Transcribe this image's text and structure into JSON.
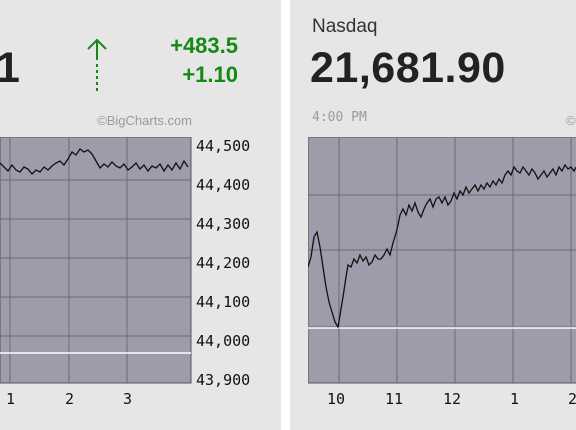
{
  "left_panel": {
    "value_partial": "1",
    "change_points": "+483.5",
    "change_pct": "+1.10",
    "credit": "©BigCharts.com",
    "trend_icon": "up-arrow-icon",
    "y_ticks": [
      "44,500",
      "44,400",
      "44,300",
      "44,200",
      "44,100",
      "44,000",
      "43,900"
    ],
    "x_ticks": [
      "1",
      "2",
      "3"
    ],
    "colors": {
      "change": "#138a13",
      "plot_bg": "#9c9caa",
      "line": "#111111",
      "ref_line": "#ffffff"
    }
  },
  "right_panel": {
    "index_name": "Nasdaq",
    "value": "21,681.90",
    "timestamp": "4:00 PM",
    "credit_partial": "©",
    "x_ticks": [
      "10",
      "11",
      "12",
      "1",
      "2"
    ],
    "colors": {
      "plot_bg": "#9c9caa",
      "line": "#111111",
      "ref_line": "#ffffff"
    }
  }
}
